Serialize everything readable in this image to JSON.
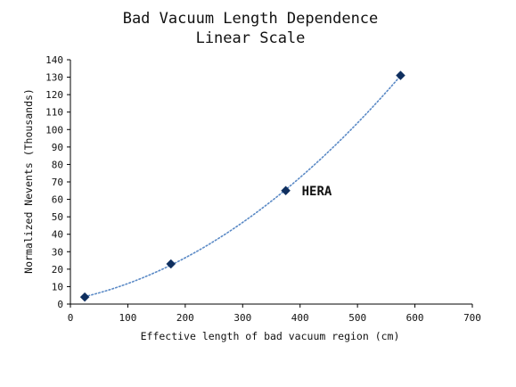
{
  "chart_data": {
    "type": "scatter",
    "title": "Bad Vacuum Length Dependence",
    "subtitle": "Linear Scale",
    "xlabel": "Effective length of bad vacuum region (cm)",
    "ylabel": "Normalized Nevents (Thousands)",
    "xlim": [
      0,
      700
    ],
    "ylim": [
      0,
      140
    ],
    "x_ticks": [
      0,
      100,
      200,
      300,
      400,
      500,
      600,
      700
    ],
    "y_ticks": [
      0,
      10,
      20,
      30,
      40,
      50,
      60,
      70,
      80,
      90,
      100,
      110,
      120,
      130,
      140
    ],
    "grid": false,
    "legend": "none",
    "series": [
      {
        "x": [
          25,
          175,
          375,
          575
        ],
        "y": [
          4,
          23,
          65,
          131
        ],
        "marker": "diamond",
        "marker_color": "#0f2f5f",
        "trendline": "quadratic",
        "trendline_style": "dotted",
        "trendline_color": "#5b8ac6"
      }
    ],
    "annotations": [
      {
        "text": "HERA",
        "x": 375,
        "y": 65
      }
    ]
  }
}
